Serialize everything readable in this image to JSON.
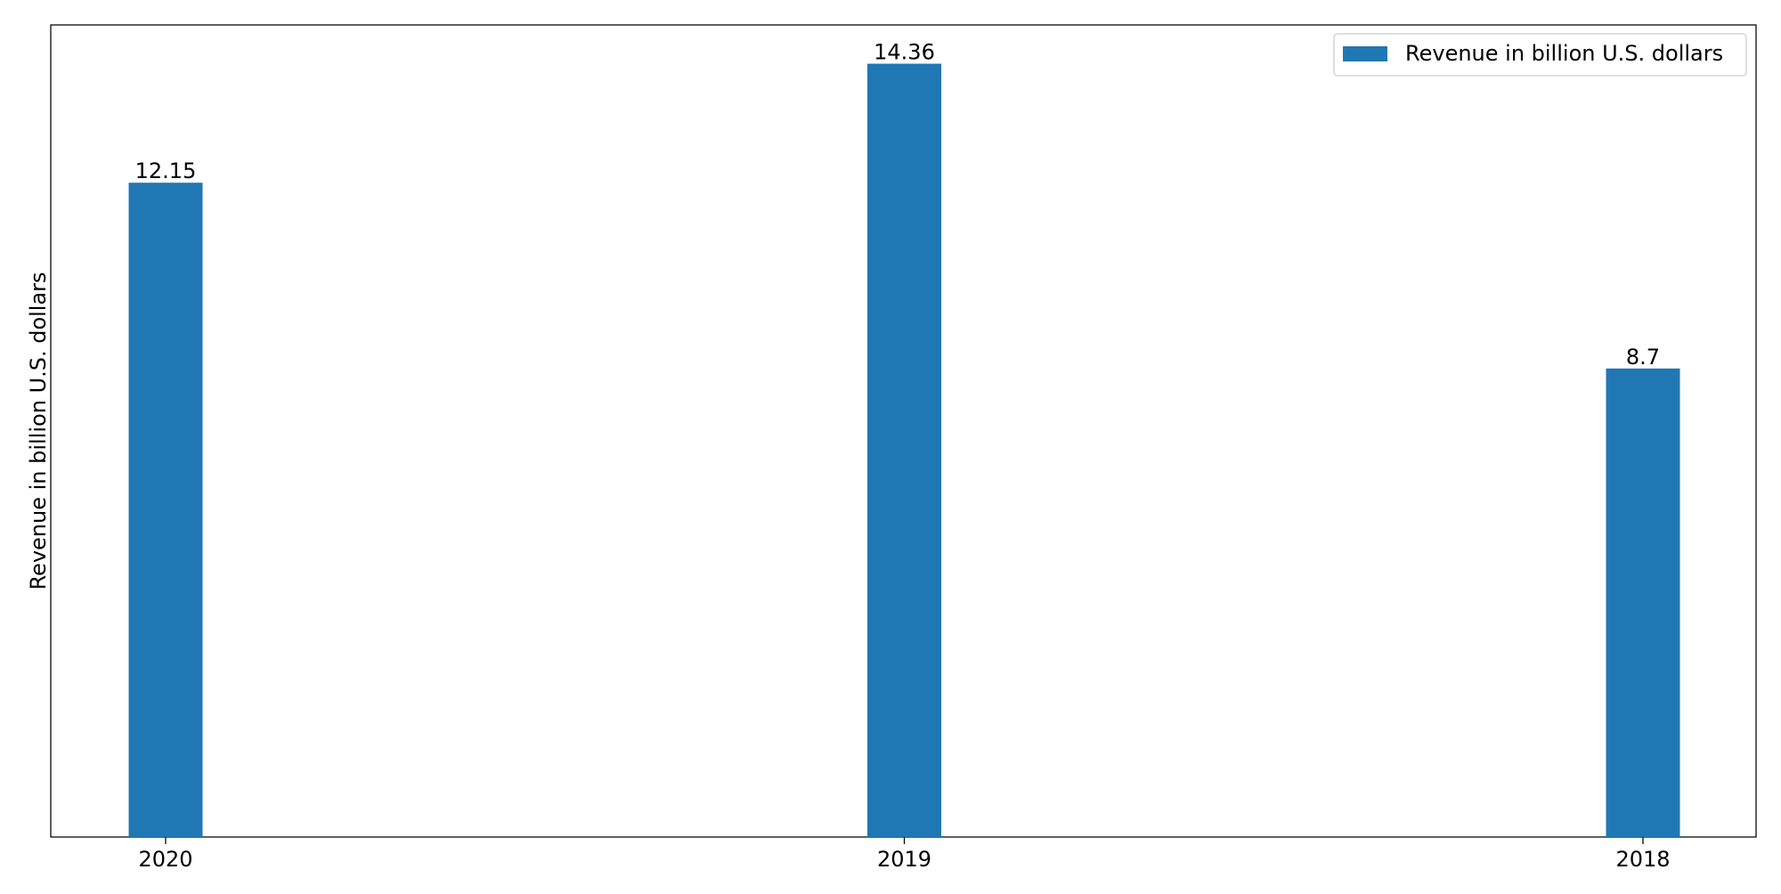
{
  "chart_data": {
    "type": "bar",
    "title": "",
    "xlabel": "",
    "ylabel": "Revenue in billion U.S. dollars",
    "categories": [
      "2020",
      "2019",
      "2018"
    ],
    "series": [
      {
        "name": "Revenue in billion U.S. dollars",
        "values": [
          12.15,
          14.36,
          8.7
        ],
        "color": "#1f77b4"
      }
    ],
    "data_labels": [
      "12.15",
      "14.36",
      "8.7"
    ],
    "ylim": [
      0,
      15.08
    ],
    "grid": false,
    "legend_position": "top-right",
    "y_ticks_visible": false
  }
}
